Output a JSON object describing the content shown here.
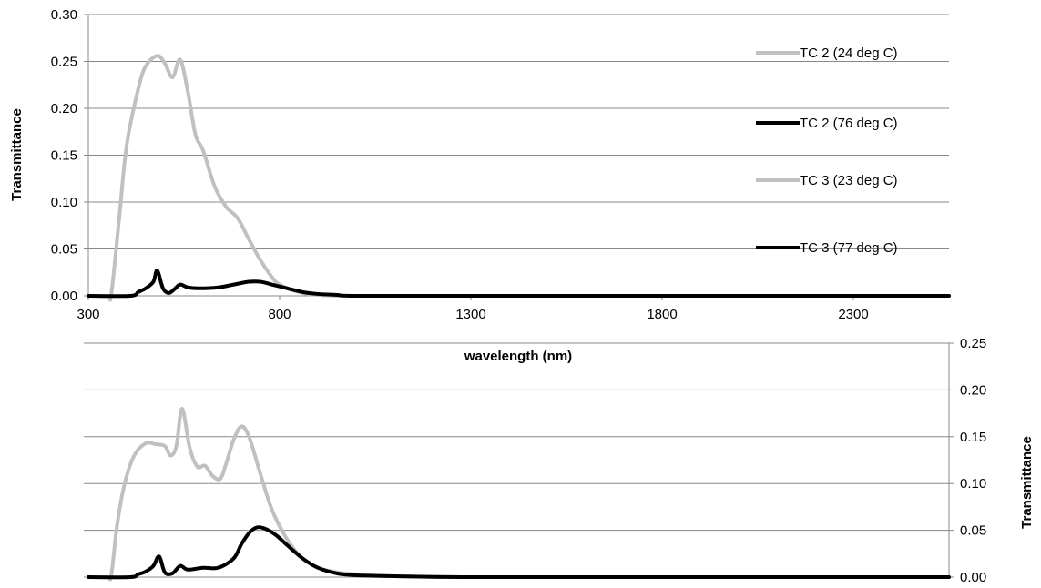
{
  "chart_data": [
    {
      "type": "line",
      "xlabel": "wavelength (nm)",
      "ylabel": "Transmittance",
      "xlim": [
        300,
        2550
      ],
      "ylim": [
        0,
        0.3
      ],
      "x_ticks": [
        "300",
        "800",
        "1300",
        "1800",
        "2300"
      ],
      "y_ticks": [
        "0.00",
        "0.05",
        "0.10",
        "0.15",
        "0.20",
        "0.25",
        "0.30"
      ],
      "grid": "horizontal",
      "legend_position": "right",
      "series": [
        {
          "name": "TC 2 (24 deg C)",
          "color": "#c0c0c0",
          "x": [
            300,
            350,
            360,
            380,
            400,
            430,
            450,
            480,
            500,
            520,
            540,
            560,
            580,
            600,
            630,
            660,
            690,
            720,
            750,
            780,
            800,
            850,
            900,
            1000,
            1300,
            1800,
            2300,
            2550
          ],
          "y": [
            0,
            0,
            0.002,
            0.08,
            0.16,
            0.22,
            0.245,
            0.256,
            0.248,
            0.233,
            0.252,
            0.218,
            0.172,
            0.155,
            0.117,
            0.095,
            0.083,
            0.06,
            0.038,
            0.02,
            0.012,
            0.004,
            0.001,
            0,
            0,
            0,
            0,
            0
          ]
        },
        {
          "name": "TC 2 (76 deg C)",
          "color": "#000000",
          "x": [
            300,
            410,
            430,
            450,
            470,
            480,
            495,
            510,
            525,
            540,
            560,
            590,
            640,
            680,
            720,
            750,
            780,
            820,
            860,
            900,
            950,
            1000,
            1300,
            1800,
            2300,
            2550
          ],
          "y": [
            0,
            0,
            0.004,
            0.008,
            0.015,
            0.027,
            0.008,
            0.003,
            0.007,
            0.012,
            0.009,
            0.008,
            0.009,
            0.012,
            0.015,
            0.015,
            0.012,
            0.008,
            0.004,
            0.002,
            0.001,
            0,
            0,
            0,
            0,
            0
          ]
        }
      ]
    },
    {
      "type": "line",
      "ylabel": "Transmittance",
      "xlim": [
        300,
        2550
      ],
      "ylim": [
        0,
        0.25
      ],
      "y_ticks": [
        "0.00",
        "0.05",
        "0.10",
        "0.15",
        "0.20",
        "0.25"
      ],
      "grid": "horizontal",
      "series": [
        {
          "name": "TC 3 (23 deg C)",
          "color": "#c0c0c0",
          "x": [
            300,
            350,
            360,
            375,
            395,
            420,
            450,
            475,
            500,
            515,
            530,
            545,
            565,
            585,
            605,
            625,
            645,
            660,
            680,
            700,
            720,
            750,
            780,
            820,
            860,
            900,
            950,
            1000,
            1100,
            1300,
            1800,
            2300,
            2550
          ],
          "y": [
            0,
            0,
            0.002,
            0.055,
            0.1,
            0.13,
            0.143,
            0.142,
            0.14,
            0.13,
            0.14,
            0.18,
            0.138,
            0.118,
            0.119,
            0.108,
            0.105,
            0.121,
            0.147,
            0.161,
            0.15,
            0.11,
            0.072,
            0.04,
            0.02,
            0.01,
            0.005,
            0.003,
            0.001,
            0,
            0,
            0,
            0
          ]
        },
        {
          "name": "TC 3 (77 deg C)",
          "color": "#000000",
          "x": [
            300,
            410,
            430,
            450,
            470,
            485,
            500,
            520,
            540,
            560,
            600,
            640,
            680,
            700,
            720,
            740,
            760,
            790,
            820,
            860,
            900,
            950,
            1000,
            1100,
            1300,
            1800,
            2300,
            2550
          ],
          "y": [
            0,
            0,
            0.003,
            0.006,
            0.012,
            0.022,
            0.005,
            0.004,
            0.012,
            0.008,
            0.01,
            0.01,
            0.02,
            0.035,
            0.047,
            0.053,
            0.052,
            0.045,
            0.034,
            0.02,
            0.01,
            0.004,
            0.002,
            0.001,
            0,
            0,
            0,
            0
          ]
        }
      ]
    }
  ]
}
